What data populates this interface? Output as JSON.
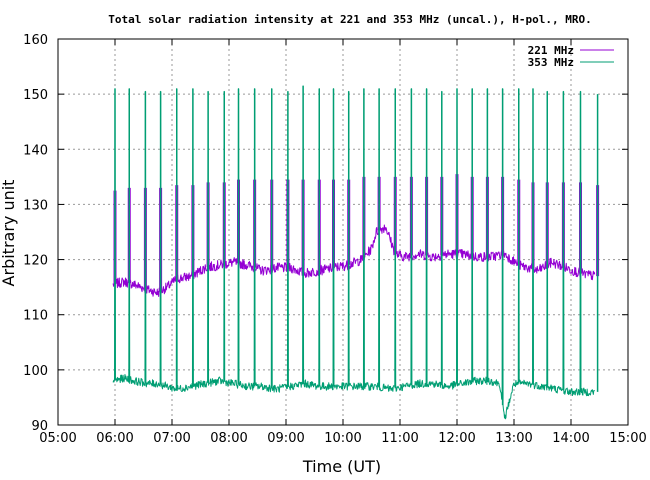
{
  "chart_data": {
    "type": "line",
    "title": "Total solar radiation intensity at 221 and 353 MHz (uncal.), H-pol., MRO.",
    "xlabel": "Time (UT)",
    "ylabel": "Arbitrary unit",
    "xlim": [
      "05:00",
      "15:00"
    ],
    "ylim": [
      90,
      160
    ],
    "x_ticks": [
      "05:00",
      "06:00",
      "07:00",
      "08:00",
      "09:00",
      "10:00",
      "11:00",
      "12:00",
      "13:00",
      "14:00",
      "15:00"
    ],
    "y_ticks": [
      90,
      100,
      110,
      120,
      130,
      140,
      150,
      160
    ],
    "grid": true,
    "legend_position": "top-right",
    "colors": {
      "221 MHz": "#9400d3",
      "353 MHz": "#009e73",
      "grid": "#999999",
      "axis": "#000000"
    },
    "spike_times": [
      "06:00",
      "06:15",
      "06:32",
      "06:48",
      "07:05",
      "07:22",
      "07:38",
      "07:55",
      "08:10",
      "08:27",
      "08:45",
      "09:02",
      "09:18",
      "09:35",
      "09:50",
      "10:06",
      "10:22",
      "10:38",
      "10:55",
      "11:12",
      "11:28",
      "11:44",
      "12:00",
      "12:16",
      "12:32",
      "12:48",
      "13:05",
      "13:20",
      "13:35",
      "13:52",
      "14:10",
      "14:28"
    ],
    "series": [
      {
        "name": "221 MHz",
        "x": [
          "05:58",
          "06:10",
          "06:20",
          "06:35",
          "06:45",
          "06:55",
          "07:05",
          "07:20",
          "07:35",
          "07:50",
          "08:05",
          "08:20",
          "08:35",
          "08:50",
          "09:05",
          "09:20",
          "09:35",
          "09:50",
          "10:05",
          "10:20",
          "10:30",
          "10:35",
          "10:45",
          "10:55",
          "11:05",
          "11:20",
          "11:35",
          "11:50",
          "12:05",
          "12:20",
          "12:35",
          "12:50",
          "13:05",
          "13:15",
          "13:25",
          "13:40",
          "13:55",
          "14:10",
          "14:25"
        ],
        "values": [
          115.5,
          116,
          115.5,
          114.5,
          114,
          115,
          116.5,
          117,
          118.5,
          119,
          119.5,
          119,
          118,
          118.5,
          118.5,
          117.5,
          118,
          118.5,
          119,
          120,
          122,
          125,
          126,
          121,
          120.5,
          121,
          120.5,
          121,
          121,
          120.5,
          120.5,
          121,
          119,
          118.5,
          118,
          119.5,
          118.5,
          117.5,
          117
        ],
        "spike_peaks": [
          132.5,
          133,
          133,
          133,
          133.5,
          133.5,
          134,
          134,
          134.5,
          134.5,
          134.5,
          134.5,
          134.5,
          134.5,
          134.5,
          134.5,
          135,
          135,
          135,
          135,
          135,
          135,
          135.5,
          135,
          135,
          135,
          134.5,
          134,
          134,
          134,
          134,
          133.5
        ]
      },
      {
        "name": "353 MHz",
        "x": [
          "05:58",
          "06:10",
          "06:20",
          "06:35",
          "06:45",
          "06:55",
          "07:05",
          "07:20",
          "07:35",
          "07:50",
          "08:05",
          "08:20",
          "08:35",
          "08:50",
          "09:05",
          "09:20",
          "09:35",
          "09:50",
          "10:05",
          "10:20",
          "10:35",
          "10:50",
          "11:05",
          "11:20",
          "11:35",
          "11:50",
          "12:05",
          "12:20",
          "12:35",
          "12:45",
          "12:50",
          "13:00",
          "13:15",
          "13:30",
          "13:45",
          "14:00",
          "14:15",
          "14:25"
        ],
        "values": [
          98,
          98.5,
          98,
          97.5,
          97.5,
          97,
          96.5,
          97,
          97.5,
          98,
          97.5,
          97,
          97,
          96.5,
          97,
          97.5,
          97,
          97,
          97,
          97,
          97,
          96.5,
          97,
          97.5,
          97.5,
          97,
          97.5,
          98,
          98,
          97.5,
          91,
          97.5,
          97.5,
          97,
          96.5,
          96,
          96,
          96
        ],
        "spike_peaks": [
          151,
          151,
          150.5,
          150.5,
          151,
          151,
          150.5,
          150.5,
          151,
          151,
          151,
          150.5,
          151.5,
          151,
          151,
          150.5,
          151,
          151,
          151,
          151,
          151,
          150.5,
          151,
          151,
          151,
          151,
          151,
          151,
          150.5,
          150.5,
          150.5,
          150
        ]
      }
    ]
  }
}
